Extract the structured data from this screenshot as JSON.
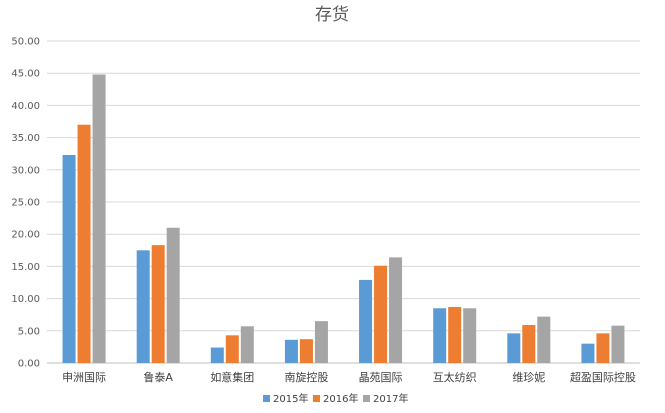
{
  "chart_data": {
    "type": "bar",
    "title": "存货",
    "xlabel": "",
    "ylabel": "",
    "ylim": [
      0,
      50
    ],
    "ytick_labels": [
      "0.00",
      "5.00",
      "10.00",
      "15.00",
      "20.00",
      "25.00",
      "30.00",
      "35.00",
      "40.00",
      "45.00",
      "50.00"
    ],
    "grid": true,
    "legend_position": "bottom",
    "categories": [
      "申洲国际",
      "鲁泰A",
      "如意集团",
      "南旋控股",
      "晶苑国际",
      "互太纺织",
      "维珍妮",
      "超盈国际控股"
    ],
    "series": [
      {
        "name": "2015年",
        "color": "#5b9bd5",
        "values": [
          32.3,
          17.5,
          2.4,
          3.6,
          12.9,
          8.5,
          4.6,
          3.0
        ]
      },
      {
        "name": "2016年",
        "color": "#ed7d31",
        "values": [
          37.0,
          18.3,
          4.3,
          3.7,
          15.1,
          8.7,
          5.9,
          4.6
        ]
      },
      {
        "name": "2017年",
        "color": "#a5a5a5",
        "values": [
          44.8,
          21.0,
          5.7,
          6.5,
          16.4,
          8.5,
          7.2,
          5.8
        ]
      }
    ]
  }
}
